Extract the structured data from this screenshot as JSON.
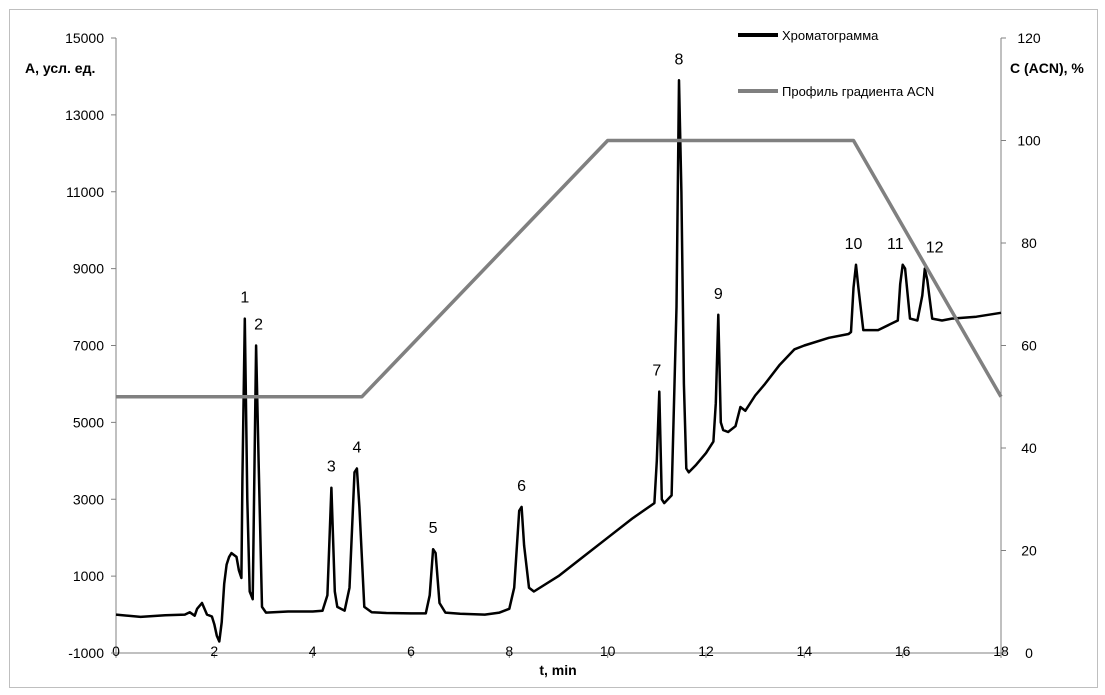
{
  "chart_data": {
    "type": "line",
    "xlabel": "t, min",
    "ylabel": "A, усл. ед.",
    "y2label": "C (ACN), %",
    "xlim": [
      0,
      18
    ],
    "ylim": [
      -1000,
      15000
    ],
    "y2lim": [
      0,
      120
    ],
    "x_ticks": [
      "0",
      "2",
      "4",
      "6",
      "8",
      "10",
      "12",
      "14",
      "16",
      "18"
    ],
    "y_ticks": [
      "-1000",
      "1000",
      "3000",
      "5000",
      "7000",
      "9000",
      "11000",
      "13000",
      "15000"
    ],
    "y2_ticks": [
      "0",
      "20",
      "40",
      "60",
      "80",
      "100",
      "120"
    ],
    "grid": false,
    "legend_position": "top-right",
    "series": [
      {
        "name": "Хроматограмма",
        "color": "#000000",
        "axis": "left",
        "points": [
          [
            0,
            0
          ],
          [
            0.5,
            -60
          ],
          [
            1.0,
            -20
          ],
          [
            1.4,
            0
          ],
          [
            1.5,
            60
          ],
          [
            1.6,
            -30
          ],
          [
            1.65,
            150
          ],
          [
            1.75,
            300
          ],
          [
            1.85,
            0
          ],
          [
            1.95,
            -50
          ],
          [
            2.0,
            -250
          ],
          [
            2.05,
            -550
          ],
          [
            2.1,
            -700
          ],
          [
            2.15,
            -200
          ],
          [
            2.2,
            800
          ],
          [
            2.25,
            1300
          ],
          [
            2.3,
            1500
          ],
          [
            2.35,
            1600
          ],
          [
            2.45,
            1500
          ],
          [
            2.5,
            1150
          ],
          [
            2.55,
            950
          ],
          [
            2.57,
            3500
          ],
          [
            2.62,
            7700
          ],
          [
            2.67,
            3000
          ],
          [
            2.72,
            600
          ],
          [
            2.78,
            400
          ],
          [
            2.85,
            7000
          ],
          [
            2.9,
            4000
          ],
          [
            2.97,
            200
          ],
          [
            3.05,
            50
          ],
          [
            3.5,
            80
          ],
          [
            4.0,
            80
          ],
          [
            4.2,
            100
          ],
          [
            4.3,
            500
          ],
          [
            4.38,
            3300
          ],
          [
            4.45,
            600
          ],
          [
            4.5,
            200
          ],
          [
            4.65,
            100
          ],
          [
            4.75,
            700
          ],
          [
            4.85,
            3700
          ],
          [
            4.9,
            3800
          ],
          [
            4.95,
            2800
          ],
          [
            5.05,
            200
          ],
          [
            5.2,
            60
          ],
          [
            5.5,
            40
          ],
          [
            6.0,
            30
          ],
          [
            6.3,
            30
          ],
          [
            6.38,
            500
          ],
          [
            6.45,
            1700
          ],
          [
            6.5,
            1600
          ],
          [
            6.58,
            300
          ],
          [
            6.7,
            50
          ],
          [
            7.0,
            20
          ],
          [
            7.5,
            0
          ],
          [
            7.8,
            50
          ],
          [
            8.0,
            150
          ],
          [
            8.1,
            700
          ],
          [
            8.2,
            2700
          ],
          [
            8.25,
            2800
          ],
          [
            8.3,
            1800
          ],
          [
            8.4,
            700
          ],
          [
            8.5,
            600
          ],
          [
            9.0,
            1000
          ],
          [
            9.5,
            1500
          ],
          [
            10.0,
            2000
          ],
          [
            10.5,
            2500
          ],
          [
            10.95,
            2900
          ],
          [
            11.0,
            4000
          ],
          [
            11.05,
            5800
          ],
          [
            11.1,
            3000
          ],
          [
            11.15,
            2900
          ],
          [
            11.3,
            3100
          ],
          [
            11.4,
            8000
          ],
          [
            11.45,
            13900
          ],
          [
            11.5,
            11000
          ],
          [
            11.55,
            6000
          ],
          [
            11.6,
            3800
          ],
          [
            11.65,
            3700
          ],
          [
            11.8,
            3900
          ],
          [
            12.0,
            4200
          ],
          [
            12.15,
            4500
          ],
          [
            12.2,
            5500
          ],
          [
            12.25,
            7800
          ],
          [
            12.3,
            5000
          ],
          [
            12.35,
            4800
          ],
          [
            12.45,
            4750
          ],
          [
            12.6,
            4900
          ],
          [
            12.7,
            5400
          ],
          [
            12.8,
            5300
          ],
          [
            13.0,
            5700
          ],
          [
            13.2,
            6000
          ],
          [
            13.5,
            6500
          ],
          [
            13.8,
            6900
          ],
          [
            14.0,
            7000
          ],
          [
            14.5,
            7200
          ],
          [
            14.9,
            7300
          ],
          [
            14.95,
            7350
          ],
          [
            15.0,
            8500
          ],
          [
            15.05,
            9100
          ],
          [
            15.1,
            8500
          ],
          [
            15.2,
            7400
          ],
          [
            15.5,
            7400
          ],
          [
            15.9,
            7650
          ],
          [
            15.95,
            8600
          ],
          [
            16.0,
            9100
          ],
          [
            16.05,
            9000
          ],
          [
            16.15,
            7700
          ],
          [
            16.3,
            7650
          ],
          [
            16.4,
            8300
          ],
          [
            16.45,
            9000
          ],
          [
            16.5,
            8700
          ],
          [
            16.6,
            7700
          ],
          [
            16.8,
            7650
          ],
          [
            17.0,
            7700
          ],
          [
            17.5,
            7750
          ],
          [
            18.0,
            7850
          ]
        ]
      },
      {
        "name": "Профиль градиента ACN",
        "color": "#808080",
        "axis": "right",
        "points": [
          [
            0,
            50
          ],
          [
            5,
            50
          ],
          [
            10,
            100
          ],
          [
            15,
            100
          ],
          [
            18,
            50
          ]
        ]
      }
    ],
    "annotations": [
      {
        "text": "1",
        "x": 2.62,
        "y": 7700
      },
      {
        "text": "2",
        "x": 2.9,
        "y": 7000
      },
      {
        "text": "3",
        "x": 4.38,
        "y": 3300
      },
      {
        "text": "4",
        "x": 4.9,
        "y": 3800
      },
      {
        "text": "5",
        "x": 6.45,
        "y": 1700
      },
      {
        "text": "6",
        "x": 8.25,
        "y": 2800
      },
      {
        "text": "7",
        "x": 11.0,
        "y": 5800
      },
      {
        "text": "8",
        "x": 11.45,
        "y": 13900
      },
      {
        "text": "9",
        "x": 12.25,
        "y": 7800
      },
      {
        "text": "10",
        "x": 15.0,
        "y": 9100
      },
      {
        "text": "11",
        "x": 15.85,
        "y": 9100
      },
      {
        "text": "12",
        "x": 16.65,
        "y": 9000
      }
    ]
  }
}
